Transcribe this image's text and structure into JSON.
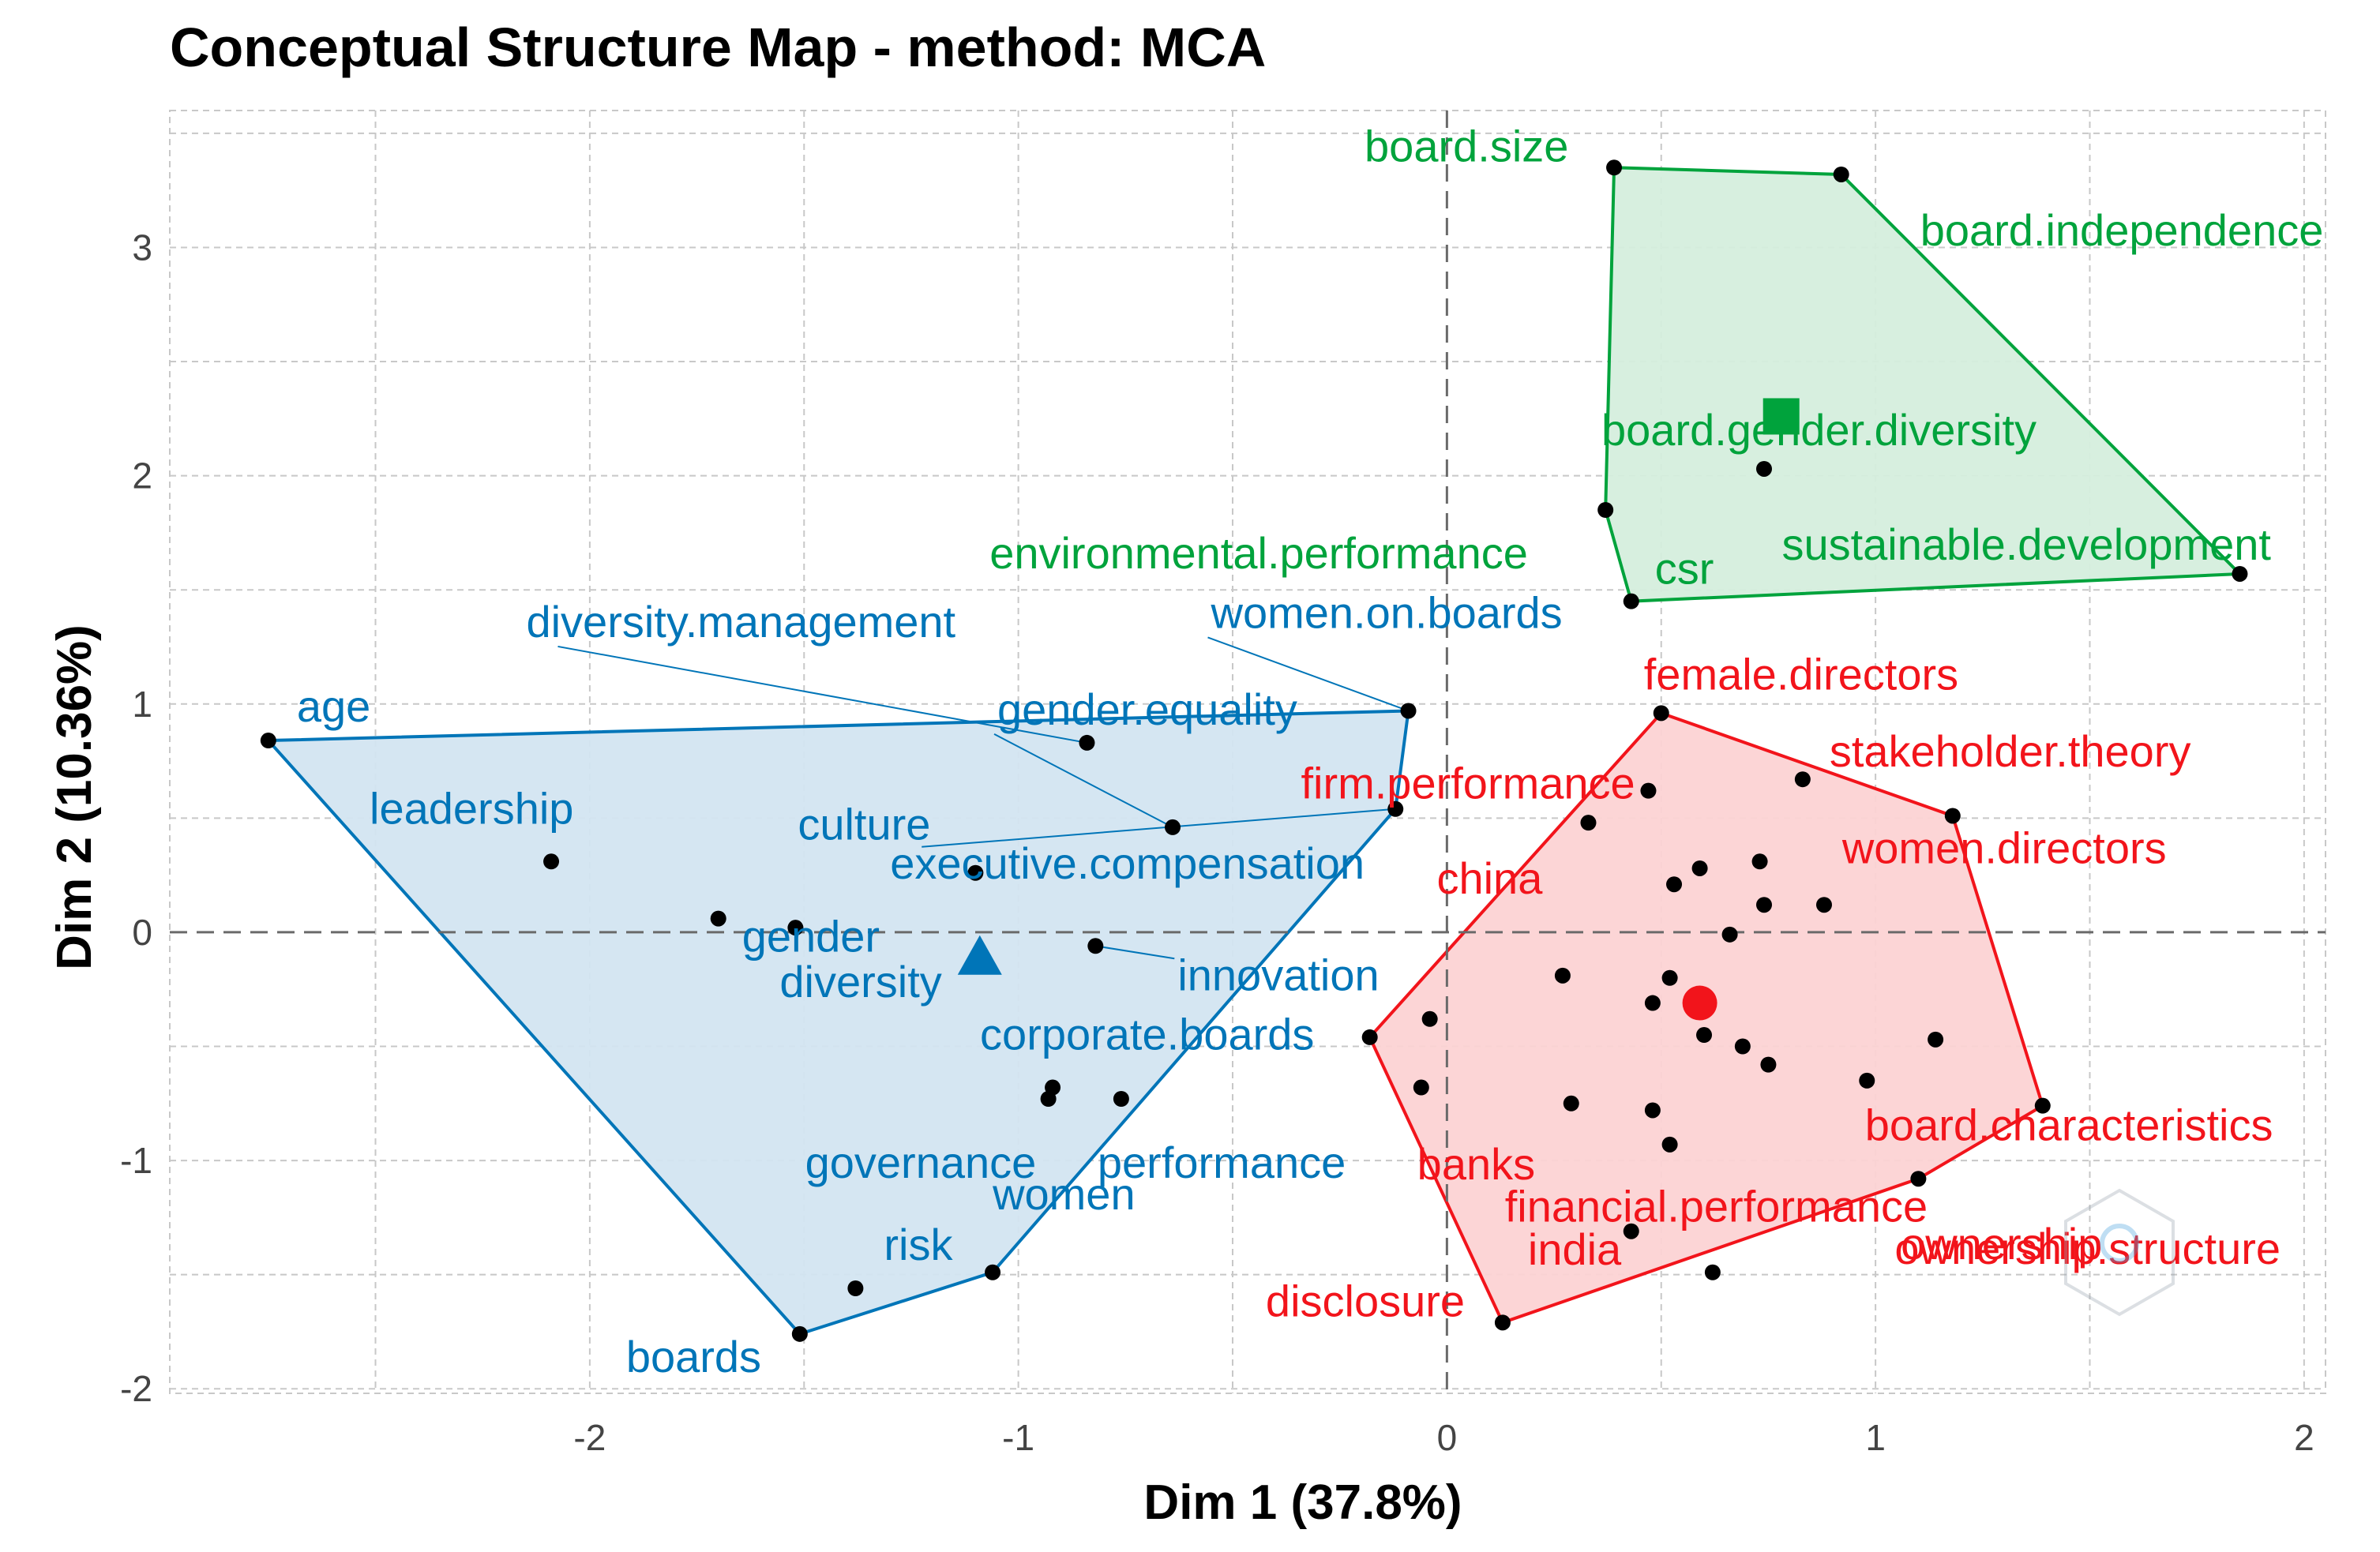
{
  "chart_data": {
    "type": "scatter",
    "title": "Conceptual Structure Map - method: MCA",
    "xlabel": "Dim 1 (37.8%)",
    "ylabel": "Dim 2 (10.36%)",
    "xlim": [
      -2.98,
      2.05
    ],
    "ylim": [
      -2.02,
      3.6
    ],
    "xticks": [
      -2,
      -1,
      0,
      1,
      2
    ],
    "yticks": [
      -2,
      -1,
      0,
      1,
      2,
      3
    ],
    "xtick_labels": [
      "-2",
      "-1",
      "0",
      "1",
      "2"
    ],
    "ytick_labels": [
      "-2",
      "-1",
      "0",
      "1",
      "2",
      "3"
    ],
    "grid": true,
    "clusters": [
      {
        "name": "cluster-1",
        "color": "#0075B8",
        "fill": "#d3e5f1",
        "centroid": {
          "shape": "triangle",
          "x": -1.09,
          "y": -0.11
        },
        "hull": [
          [
            -2.75,
            0.84
          ],
          [
            -0.09,
            0.97
          ],
          [
            -0.12,
            0.54
          ],
          [
            -1.06,
            -1.49
          ],
          [
            -1.51,
            -1.76
          ]
        ],
        "terms": [
          {
            "label": "age",
            "x": -2.75,
            "y": 0.84
          },
          {
            "label": "leadership",
            "x": -2.09,
            "y": 0.31
          },
          {
            "label": "gender",
            "x": -1.7,
            "y": 0.06
          },
          {
            "label": "diversity",
            "x": -1.52,
            "y": 0.02
          },
          {
            "label": "culture",
            "x": -1.1,
            "y": 0.26
          },
          {
            "label": "diversity.management",
            "x": -0.84,
            "y": 0.83
          },
          {
            "label": "gender.equality",
            "x": -0.64,
            "y": 0.46
          },
          {
            "label": "women.on.boards",
            "x": -0.09,
            "y": 0.97
          },
          {
            "label": "executive.compensation",
            "x": -0.12,
            "y": 0.54
          },
          {
            "label": "innovation",
            "x": -0.82,
            "y": -0.06
          },
          {
            "label": "corporate.boards",
            "x": -0.92,
            "y": -0.68
          },
          {
            "label": "governance",
            "x": -0.93,
            "y": -0.73
          },
          {
            "label": "performance",
            "x": -0.76,
            "y": -0.73
          },
          {
            "label": "risk",
            "x": -1.38,
            "y": -1.56
          },
          {
            "label": "women",
            "x": -1.06,
            "y": -1.49
          },
          {
            "label": "boards",
            "x": -1.51,
            "y": -1.76
          }
        ]
      },
      {
        "name": "cluster-2",
        "color": "#00A33C",
        "fill": "#d5eedd",
        "centroid": {
          "shape": "square",
          "x": 0.78,
          "y": 2.26
        },
        "hull": [
          [
            0.39,
            3.35
          ],
          [
            0.92,
            3.32
          ],
          [
            1.85,
            1.57
          ],
          [
            0.43,
            1.45
          ],
          [
            0.37,
            1.85
          ]
        ],
        "terms": [
          {
            "label": "board.size",
            "x": 0.39,
            "y": 3.35
          },
          {
            "label": "board.independence",
            "x": 0.92,
            "y": 3.32
          },
          {
            "label": "board.gender.diversity",
            "x": 0.74,
            "y": 2.03
          },
          {
            "label": "sustainable.development",
            "x": 1.85,
            "y": 1.57
          },
          {
            "label": "csr",
            "x": 0.43,
            "y": 1.45
          },
          {
            "label": "environmental.performance",
            "x": 0.37,
            "y": 1.85
          }
        ]
      },
      {
        "name": "cluster-3",
        "color": "#F2141B",
        "fill": "#fcd3d4",
        "centroid": {
          "shape": "circle",
          "x": 0.59,
          "y": -0.31
        },
        "hull": [
          [
            0.5,
            0.96
          ],
          [
            1.18,
            0.51
          ],
          [
            1.39,
            -0.76
          ],
          [
            1.1,
            -1.08
          ],
          [
            0.13,
            -1.71
          ],
          [
            -0.18,
            -0.46
          ]
        ],
        "terms": [
          {
            "label": "female.directors",
            "x": 0.5,
            "y": 0.96
          },
          {
            "label": "stakeholder.theory",
            "x": 0.83,
            "y": 0.67
          },
          {
            "label": "women.directors",
            "x": 1.18,
            "y": 0.51
          },
          {
            "label": "firm.performance",
            "x": 0.47,
            "y": 0.62
          },
          {
            "label": "china",
            "x": 0.33,
            "y": 0.48
          },
          {
            "label": "board.characteristics",
            "x": 1.39,
            "y": -0.76
          },
          {
            "label": "ownership.structure",
            "x": 1.1,
            "y": -1.08
          },
          {
            "label": "financial.performance",
            "x": 0.43,
            "y": -1.31
          },
          {
            "label": "disclosure",
            "x": 0.13,
            "y": -1.71
          },
          {
            "label": "india",
            "x": 0.62,
            "y": -1.49
          },
          {
            "label": "ownership",
            "x": 1.14,
            "y": -0.47
          },
          {
            "label": "banks",
            "x": -0.18,
            "y": -0.46
          },
          {
            "label": "",
            "x": 0.53,
            "y": 0.21
          },
          {
            "label": "",
            "x": 0.59,
            "y": 0.28
          },
          {
            "label": "",
            "x": 0.73,
            "y": 0.31
          },
          {
            "label": "",
            "x": 0.74,
            "y": 0.12
          },
          {
            "label": "",
            "x": 0.88,
            "y": 0.12
          },
          {
            "label": "",
            "x": 0.66,
            "y": -0.01
          },
          {
            "label": "",
            "x": 0.27,
            "y": -0.19
          },
          {
            "label": "",
            "x": 0.52,
            "y": -0.2
          },
          {
            "label": "",
            "x": 0.48,
            "y": -0.31
          },
          {
            "label": "",
            "x": -0.04,
            "y": -0.38
          },
          {
            "label": "",
            "x": 0.6,
            "y": -0.45
          },
          {
            "label": "",
            "x": 0.69,
            "y": -0.5
          },
          {
            "label": "",
            "x": 0.75,
            "y": -0.58
          },
          {
            "label": "",
            "x": 0.98,
            "y": -0.65
          },
          {
            "label": "",
            "x": -0.06,
            "y": -0.68
          },
          {
            "label": "",
            "x": 0.29,
            "y": -0.75
          },
          {
            "label": "",
            "x": 0.48,
            "y": -0.78
          },
          {
            "label": "",
            "x": 0.52,
            "y": -0.93
          }
        ]
      }
    ]
  }
}
